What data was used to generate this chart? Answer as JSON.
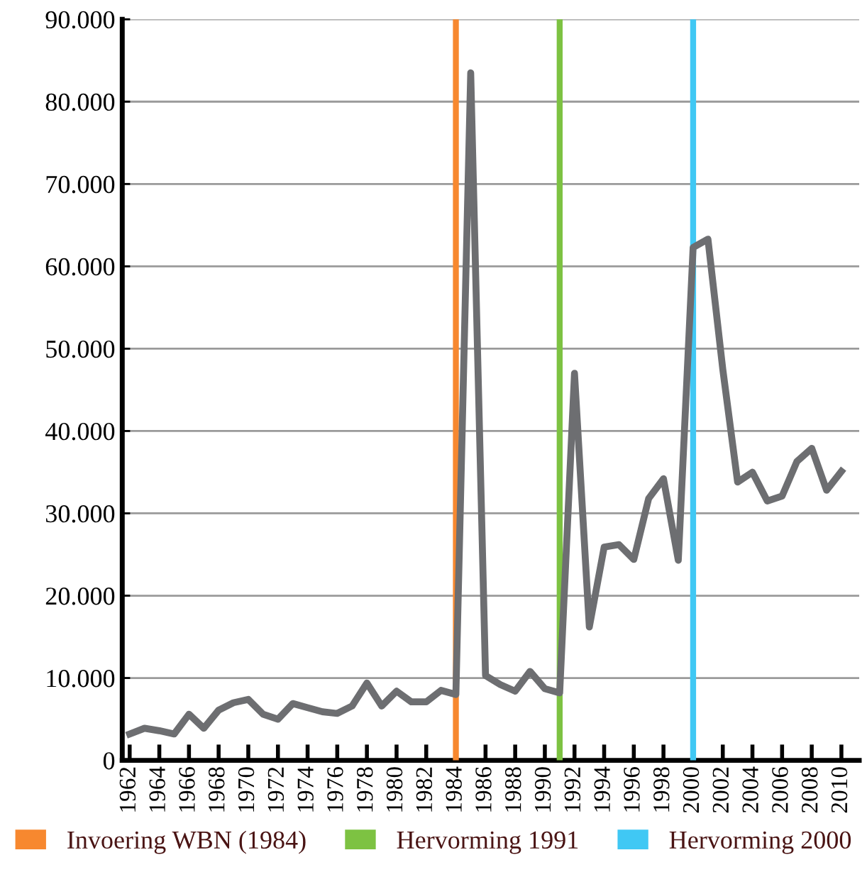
{
  "chart_data": {
    "type": "line",
    "x": [
      1962,
      1963,
      1964,
      1965,
      1966,
      1967,
      1968,
      1969,
      1970,
      1971,
      1972,
      1973,
      1974,
      1975,
      1976,
      1977,
      1978,
      1979,
      1980,
      1981,
      1982,
      1983,
      1984,
      1985,
      1986,
      1987,
      1988,
      1989,
      1990,
      1991,
      1992,
      1993,
      1994,
      1995,
      1996,
      1997,
      1998,
      1999,
      2000,
      2001,
      2002,
      2003,
      2004,
      2005,
      2006,
      2007,
      2008,
      2009,
      2010
    ],
    "series": [
      {
        "color": "#6d6e71",
        "values": [
          3200,
          3900,
          3600,
          3200,
          5600,
          3900,
          6100,
          7000,
          7400,
          5600,
          5000,
          6900,
          6400,
          5900,
          5700,
          6600,
          9400,
          6600,
          8400,
          7100,
          7100,
          8500,
          8000,
          83500,
          10300,
          9200,
          8400,
          10800,
          8700,
          8200,
          47000,
          16200,
          25900,
          26200,
          24400,
          31800,
          34200,
          24300,
          62300,
          63300,
          47500,
          33800,
          35000,
          31500,
          32100,
          36300,
          37900,
          32800,
          35100
        ]
      }
    ],
    "xlim": [
      1961.5,
      2011.2
    ],
    "xticks": [
      1962,
      1964,
      1966,
      1968,
      1970,
      1972,
      1974,
      1976,
      1978,
      1980,
      1982,
      1984,
      1986,
      1988,
      1990,
      1992,
      1994,
      1996,
      1998,
      2000,
      2002,
      2004,
      2006,
      2008,
      2010
    ],
    "ylim": [
      0,
      90000
    ],
    "yticks": [
      {
        "value": 0,
        "label": "0"
      },
      {
        "value": 10000,
        "label": "10.000"
      },
      {
        "value": 20000,
        "label": "20.000"
      },
      {
        "value": 30000,
        "label": "30.000"
      },
      {
        "value": 40000,
        "label": "40.000"
      },
      {
        "value": 50000,
        "label": "50.000"
      },
      {
        "value": 60000,
        "label": "60.000"
      },
      {
        "value": 70000,
        "label": "70.000"
      },
      {
        "value": 80000,
        "label": "80.000"
      },
      {
        "value": 90000,
        "label": "90.000"
      }
    ],
    "grid": "y",
    "legend": "bottom",
    "marker": "none",
    "line_style": "solid",
    "ref_lines": [
      {
        "axis": "x",
        "value": 1984,
        "label": "Invoering WBN (1984)",
        "color": "#f7882f"
      },
      {
        "axis": "x",
        "value": 1991,
        "label": "Hervorming 1991",
        "color": "#7dc242"
      },
      {
        "axis": "x",
        "value": 2000,
        "label": "Hervorming 2000",
        "color": "#40c8f4"
      }
    ]
  }
}
